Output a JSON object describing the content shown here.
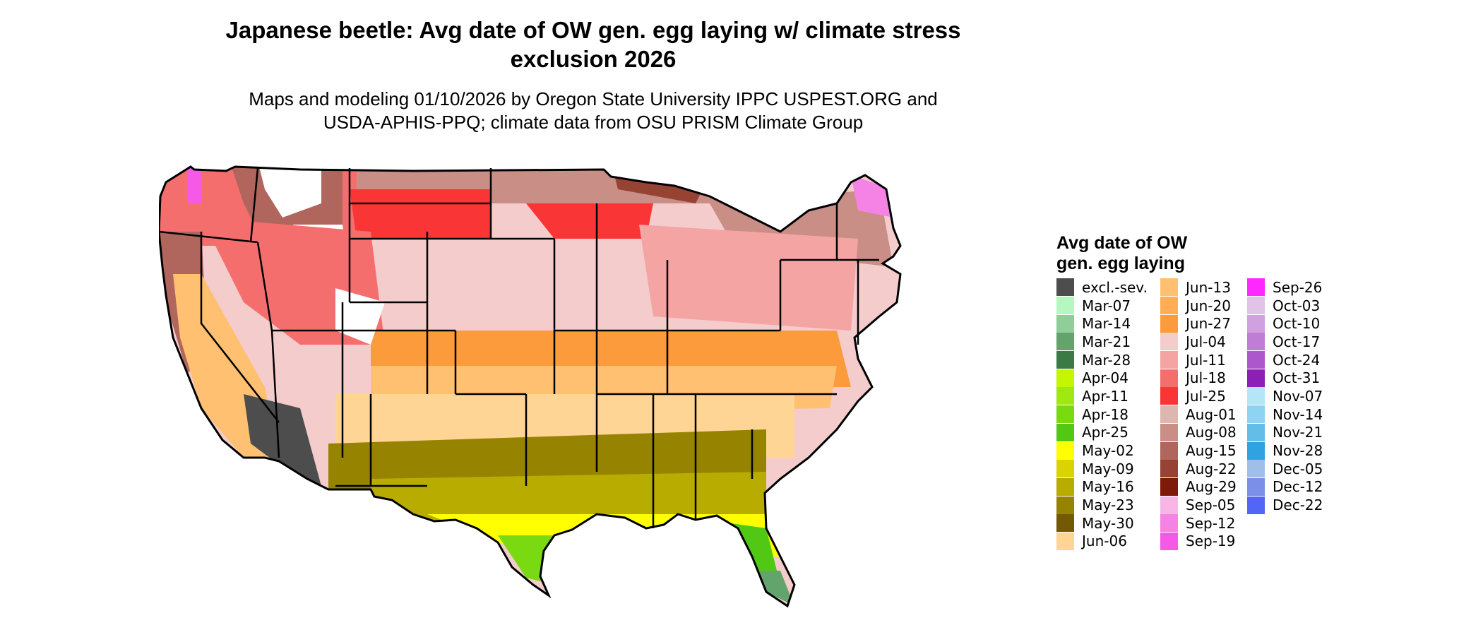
{
  "title_line1": "Japanese beetle: Avg date of OW gen. egg laying w/ climate stress",
  "title_line2": "exclusion 2026",
  "subtitle_line1": "Maps and modeling 01/10/2026 by Oregon State University IPPC USPEST.ORG and",
  "subtitle_line2": "USDA-APHIS-PPQ; climate data from OSU PRISM Climate Group",
  "legend": {
    "title_line1": "Avg date of OW",
    "title_line2": "gen. egg laying",
    "columns": [
      [
        {
          "label": "excl.-sev.",
          "color": "#4d4d4d"
        },
        {
          "label": "Mar-07",
          "color": "#b5f7bf"
        },
        {
          "label": "Mar-14",
          "color": "#8fce98"
        },
        {
          "label": "Mar-21",
          "color": "#62a46b"
        },
        {
          "label": "Mar-28",
          "color": "#3c7a45"
        },
        {
          "label": "Apr-04",
          "color": "#c4f600"
        },
        {
          "label": "Apr-11",
          "color": "#9fe811"
        },
        {
          "label": "Apr-18",
          "color": "#79da12"
        },
        {
          "label": "Apr-25",
          "color": "#51c914"
        },
        {
          "label": "May-02",
          "color": "#ffff00"
        },
        {
          "label": "May-09",
          "color": "#dbd300"
        },
        {
          "label": "May-16",
          "color": "#b8ac00"
        },
        {
          "label": "May-23",
          "color": "#968400"
        },
        {
          "label": "May-30",
          "color": "#735a00"
        },
        {
          "label": "Jun-06",
          "color": "#ffd595"
        }
      ],
      [
        {
          "label": "Jun-13",
          "color": "#ffc071"
        },
        {
          "label": "Jun-20",
          "color": "#ffad56"
        },
        {
          "label": "Jun-27",
          "color": "#fb9b3c"
        },
        {
          "label": "Jul-04",
          "color": "#f4cccc"
        },
        {
          "label": "Jul-11",
          "color": "#f5a4a4"
        },
        {
          "label": "Jul-18",
          "color": "#f56e6e"
        },
        {
          "label": "Jul-25",
          "color": "#fa3535"
        },
        {
          "label": "Aug-01",
          "color": "#deb6b0"
        },
        {
          "label": "Aug-08",
          "color": "#c98f86"
        },
        {
          "label": "Aug-15",
          "color": "#b0665c"
        },
        {
          "label": "Aug-22",
          "color": "#964334"
        },
        {
          "label": "Aug-29",
          "color": "#7d1b08"
        },
        {
          "label": "Sep-05",
          "color": "#f7b6e6"
        },
        {
          "label": "Sep-12",
          "color": "#f583e6"
        },
        {
          "label": "Sep-19",
          "color": "#f55ae6"
        }
      ],
      [
        {
          "label": "Sep-26",
          "color": "#ff28ff"
        },
        {
          "label": "Oct-03",
          "color": "#e0c3e6"
        },
        {
          "label": "Oct-10",
          "color": "#d0a1de"
        },
        {
          "label": "Oct-17",
          "color": "#bf7dd6"
        },
        {
          "label": "Oct-24",
          "color": "#ad57cd"
        },
        {
          "label": "Oct-31",
          "color": "#8c1fb5"
        },
        {
          "label": "Nov-07",
          "color": "#b3e6f7"
        },
        {
          "label": "Nov-14",
          "color": "#8fd3f2"
        },
        {
          "label": "Nov-21",
          "color": "#63bde8"
        },
        {
          "label": "Nov-28",
          "color": "#2fa3df"
        },
        {
          "label": "Dec-05",
          "color": "#9fbfe8"
        },
        {
          "label": "Dec-12",
          "color": "#7b8fe8"
        },
        {
          "label": "Dec-22",
          "color": "#5265f5"
        }
      ]
    ]
  }
}
